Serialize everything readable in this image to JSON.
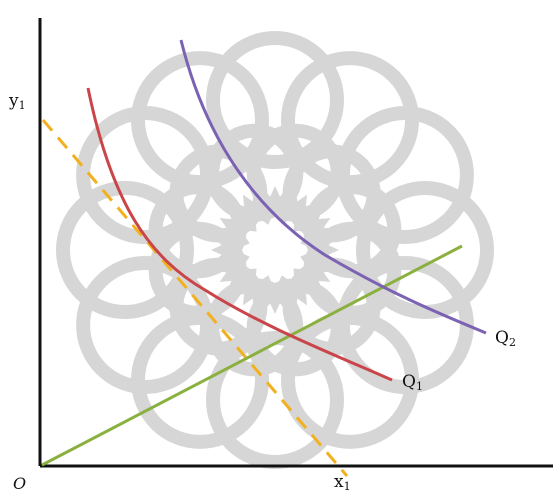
{
  "axes": {
    "origin_label": "O",
    "y_intercept_label": {
      "base": "y",
      "sub": "1"
    },
    "x_intercept_label": {
      "base": "x",
      "sub": "1"
    }
  },
  "curves": {
    "q1": {
      "base": "Q",
      "sub": "1",
      "color": "#c9454a"
    },
    "q2": {
      "base": "Q",
      "sub": "2",
      "color": "#7b62b3"
    }
  },
  "lines": {
    "budget_color": "#f2b01e",
    "ray_color": "#8ab13f",
    "axis_color": "#111111"
  },
  "watermark": {
    "color": "#d0d0d0"
  }
}
